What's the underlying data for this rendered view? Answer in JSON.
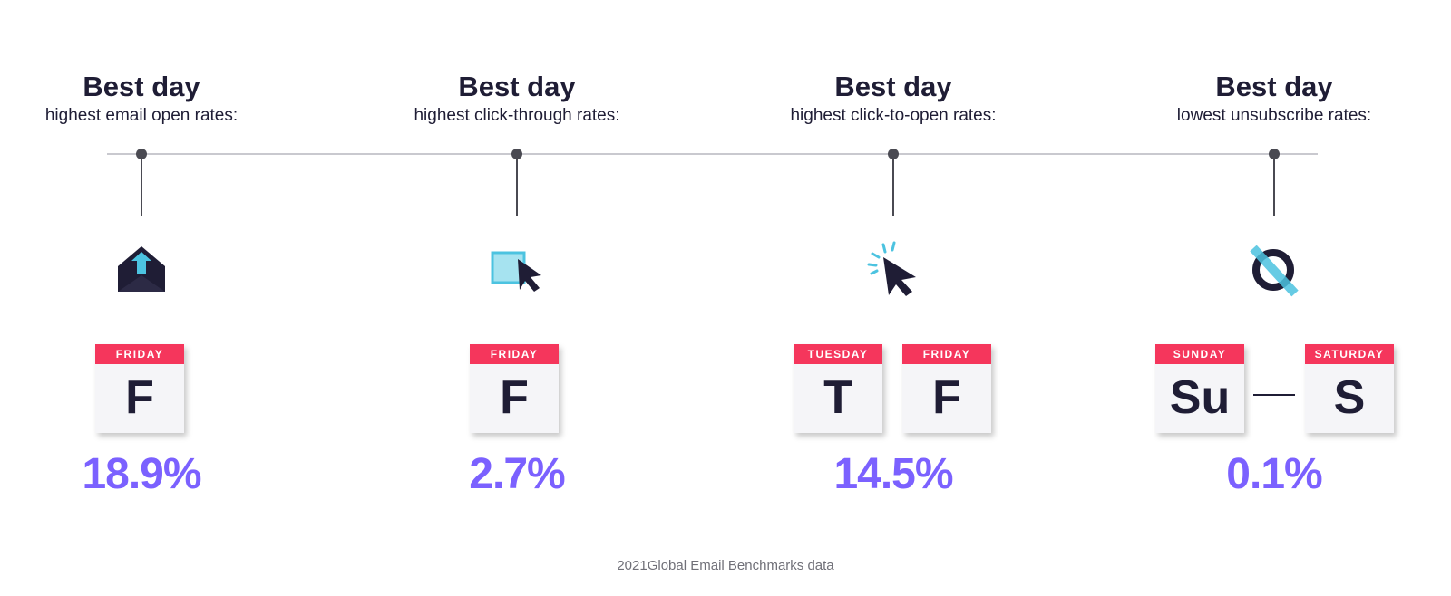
{
  "columns": [
    {
      "title": "Best day",
      "subtitle": "highest email open rates:",
      "icon": "open-envelope-icon",
      "days": [
        {
          "header": "FRIDAY",
          "letter": "F"
        }
      ],
      "value": "18.9%"
    },
    {
      "title": "Best day",
      "subtitle": "highest click-through rates:",
      "icon": "click-square-cursor-icon",
      "days": [
        {
          "header": "FRIDAY",
          "letter": "F"
        }
      ],
      "value": "2.7%"
    },
    {
      "title": "Best day",
      "subtitle": "highest click-to-open rates:",
      "icon": "clicking-cursor-icon",
      "days": [
        {
          "header": "TUESDAY",
          "letter": "T"
        },
        {
          "header": "FRIDAY",
          "letter": "F"
        }
      ],
      "value": "14.5%"
    },
    {
      "title": "Best day",
      "subtitle": "lowest unsubscribe rates:",
      "icon": "unsubscribe-slash-icon",
      "days": [
        {
          "header": "SUNDAY",
          "letter": "Su"
        },
        {
          "header": "SATURDAY",
          "letter": "S"
        }
      ],
      "value": "0.1%"
    }
  ],
  "footer": "2021Global Email Benchmarks data",
  "colors": {
    "accent": "#7b61ff",
    "calendar_header": "#f5365c",
    "icon_blue": "#4cc3e0",
    "text_dark": "#1f1d35"
  }
}
